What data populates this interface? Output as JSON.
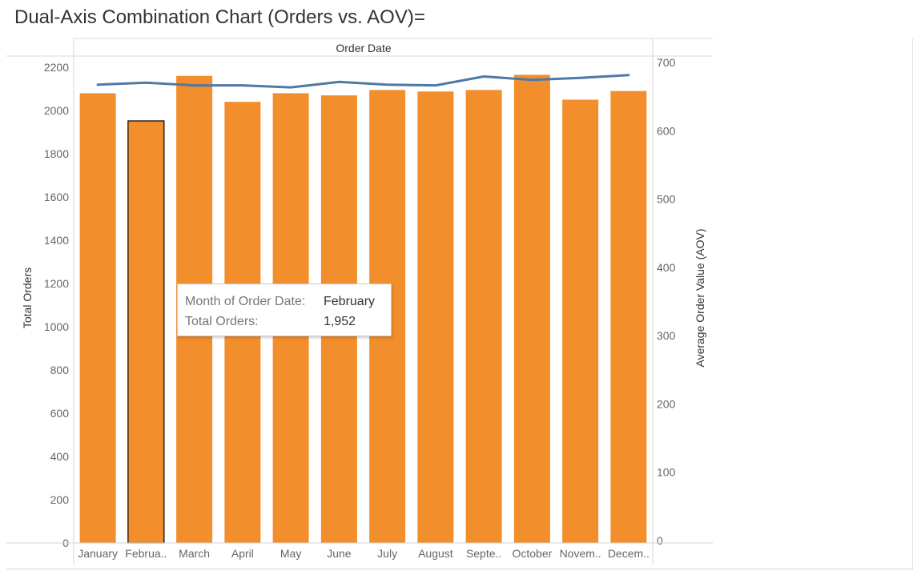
{
  "title": "Dual-Axis Combination Chart (Orders vs. AOV)=",
  "colors": {
    "bar": "#f28e2b",
    "line": "#4e79a7",
    "selected_outline": "#000000"
  },
  "chart_data": {
    "type": "bar",
    "header_label": "Order Date",
    "categories": [
      "January",
      "February",
      "March",
      "April",
      "May",
      "June",
      "July",
      "August",
      "September",
      "October",
      "November",
      "December"
    ],
    "category_tick_labels": [
      "January",
      "Februa..",
      "March",
      "April",
      "May",
      "June",
      "July",
      "August",
      "Septe..",
      "October",
      "Novem..",
      "Decem.."
    ],
    "series": [
      {
        "type": "bar",
        "axis": "left",
        "values": [
          2080,
          1952,
          2160,
          2040,
          2080,
          2070,
          2095,
          2088,
          2095,
          2165,
          2050,
          2090
        ]
      },
      {
        "type": "line",
        "axis": "right",
        "values": [
          671,
          674,
          670,
          670,
          667,
          675,
          671,
          670,
          683,
          678,
          681,
          685
        ]
      }
    ],
    "ylabel": "Total Orders",
    "ylim": [
      0,
      2200
    ],
    "yticks": [
      0,
      200,
      400,
      600,
      800,
      1000,
      1200,
      1400,
      1600,
      1800,
      2000,
      2200
    ],
    "y2label": "Average Order Value (AOV)",
    "y2lim": [
      0,
      700
    ],
    "y2ticks": [
      0,
      100,
      200,
      300,
      400,
      500,
      600,
      700
    ],
    "grid": false,
    "selected_category": "February"
  },
  "tooltip": {
    "row1_key": "Month of Order Date:",
    "row1_value": "February",
    "row2_key": "Total Orders:",
    "row2_value": "1,952"
  }
}
